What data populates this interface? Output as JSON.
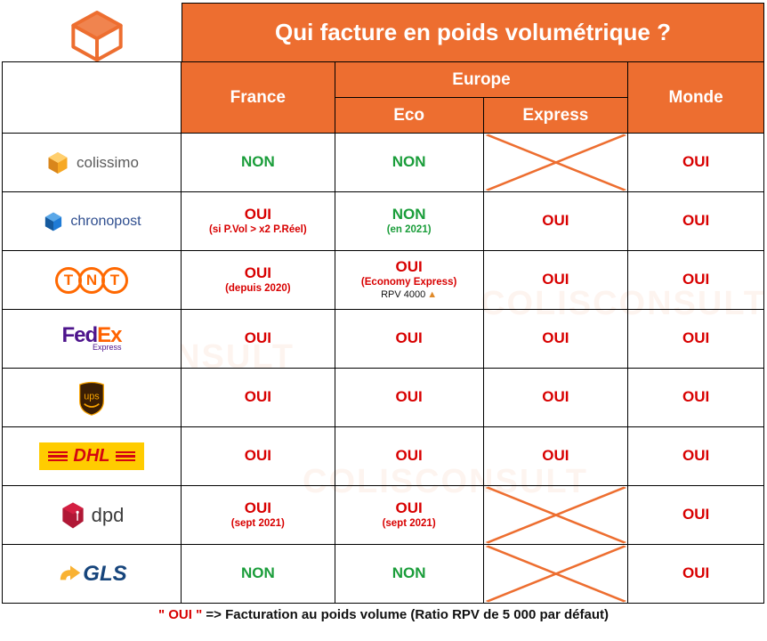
{
  "title": "Qui facture en poids volumétrique ?",
  "logo": {
    "name1": "COLIS",
    "name2": "CONSULT"
  },
  "headers": {
    "france": "France",
    "europe": "Europe",
    "eco": "Eco",
    "express": "Express",
    "monde": "Monde"
  },
  "colors": {
    "primary": "#ed6e30",
    "green": "#1a9d3a",
    "red": "#d80000",
    "black": "#000000"
  },
  "carriers": [
    {
      "id": "colissimo",
      "label": "colissimo",
      "france": {
        "text": "NON",
        "color": "#1a9d3a"
      },
      "eco": {
        "text": "NON",
        "color": "#1a9d3a"
      },
      "express": {
        "crossed": true
      },
      "monde": {
        "text": "OUI",
        "color": "#d80000"
      }
    },
    {
      "id": "chronopost",
      "label": "chronopost",
      "france": {
        "text": "OUI",
        "color": "#d80000",
        "note": "(si P.Vol > x2 P.Réel)",
        "note_color": "#d80000"
      },
      "eco": {
        "text": "NON",
        "color": "#1a9d3a",
        "note": "(en 2021)",
        "note_color": "#1a9d3a"
      },
      "express": {
        "text": "OUI",
        "color": "#d80000"
      },
      "monde": {
        "text": "OUI",
        "color": "#d80000"
      }
    },
    {
      "id": "tnt",
      "label": "TNT",
      "france": {
        "text": "OUI",
        "color": "#d80000",
        "note": "(depuis 2020)",
        "note_color": "#d80000"
      },
      "eco": {
        "text": "OUI",
        "color": "#d80000",
        "note": "(Economy Express)",
        "note_color": "#d80000",
        "note2": "RPV 4000",
        "warn": true
      },
      "express": {
        "text": "OUI",
        "color": "#d80000"
      },
      "monde": {
        "text": "OUI",
        "color": "#d80000"
      }
    },
    {
      "id": "fedex",
      "label": "FedEx",
      "france": {
        "text": "OUI",
        "color": "#d80000"
      },
      "eco": {
        "text": "OUI",
        "color": "#d80000"
      },
      "express": {
        "text": "OUI",
        "color": "#d80000"
      },
      "monde": {
        "text": "OUI",
        "color": "#d80000"
      }
    },
    {
      "id": "ups",
      "label": "ups",
      "france": {
        "text": "OUI",
        "color": "#d80000"
      },
      "eco": {
        "text": "OUI",
        "color": "#d80000"
      },
      "express": {
        "text": "OUI",
        "color": "#d80000"
      },
      "monde": {
        "text": "OUI",
        "color": "#d80000"
      }
    },
    {
      "id": "dhl",
      "label": "DHL",
      "france": {
        "text": "OUI",
        "color": "#d80000"
      },
      "eco": {
        "text": "OUI",
        "color": "#d80000"
      },
      "express": {
        "text": "OUI",
        "color": "#d80000"
      },
      "monde": {
        "text": "OUI",
        "color": "#d80000"
      }
    },
    {
      "id": "dpd",
      "label": "dpd",
      "france": {
        "text": "OUI",
        "color": "#d80000",
        "note": "(sept 2021)",
        "note_color": "#d80000"
      },
      "eco": {
        "text": "OUI",
        "color": "#d80000",
        "note": "(sept 2021)",
        "note_color": "#d80000"
      },
      "express": {
        "crossed": true
      },
      "monde": {
        "text": "OUI",
        "color": "#d80000"
      }
    },
    {
      "id": "gls",
      "label": "GLS",
      "france": {
        "text": "NON",
        "color": "#1a9d3a"
      },
      "eco": {
        "text": "NON",
        "color": "#1a9d3a"
      },
      "express": {
        "crossed": true
      },
      "monde": {
        "text": "OUI",
        "color": "#d80000"
      }
    }
  ],
  "footer": {
    "oui_literal": "\" OUI \"",
    "text_rest": "  =>  Facturation au poids volume (Ratio RPV de 5 000 par défaut)"
  },
  "watermark_text": "COLISCONSULT"
}
